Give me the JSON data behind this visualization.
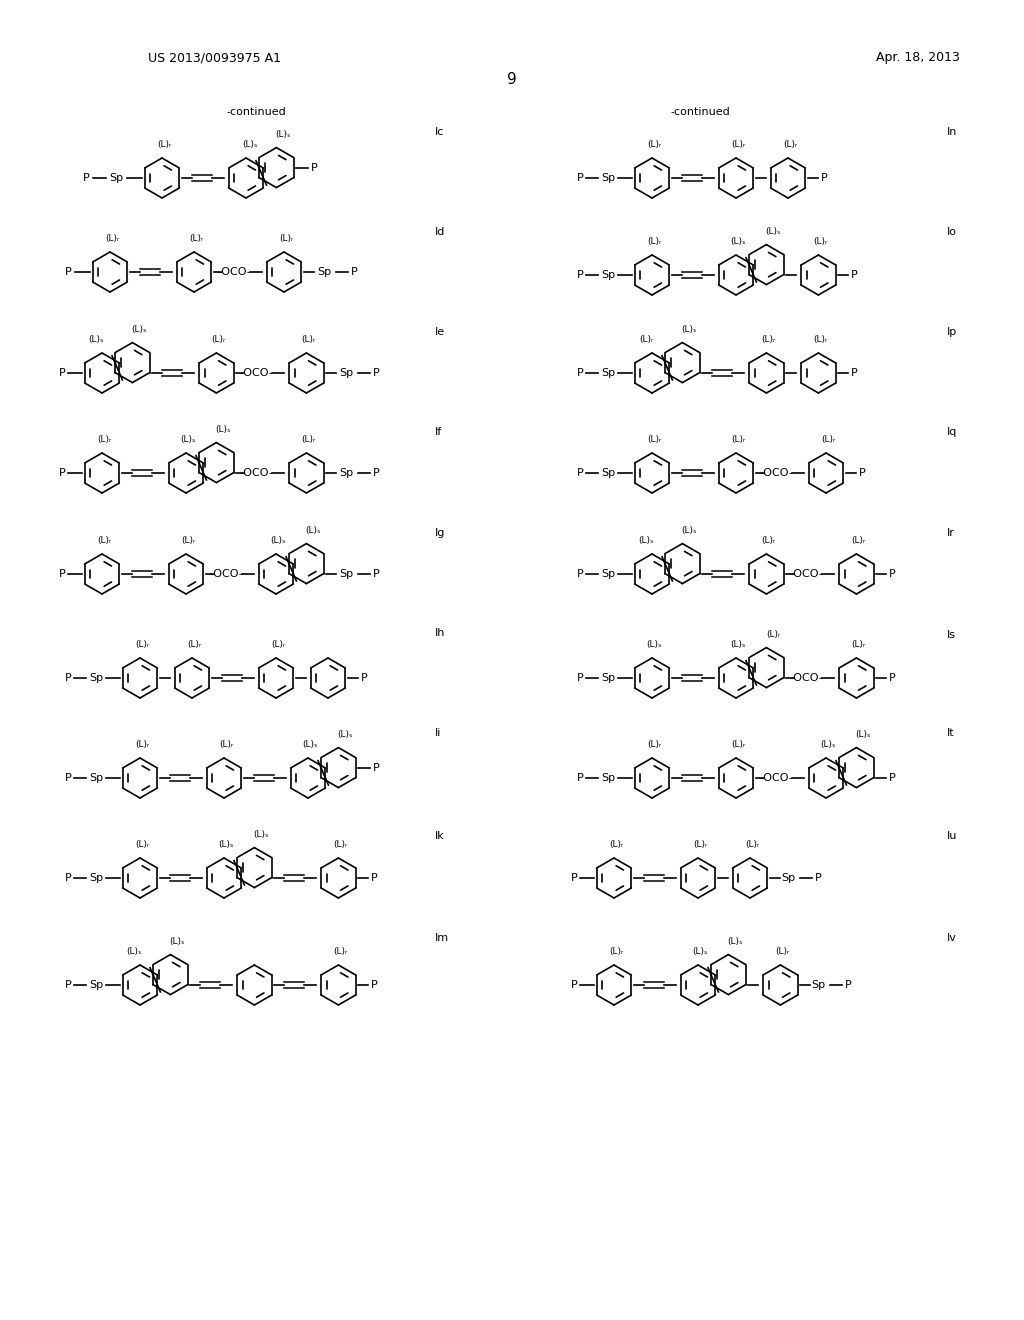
{
  "patent_number": "US 2013/0093975 A1",
  "patent_date": "Apr. 18, 2013",
  "page_number": "9",
  "background_color": "#ffffff",
  "text_color": "#000000"
}
